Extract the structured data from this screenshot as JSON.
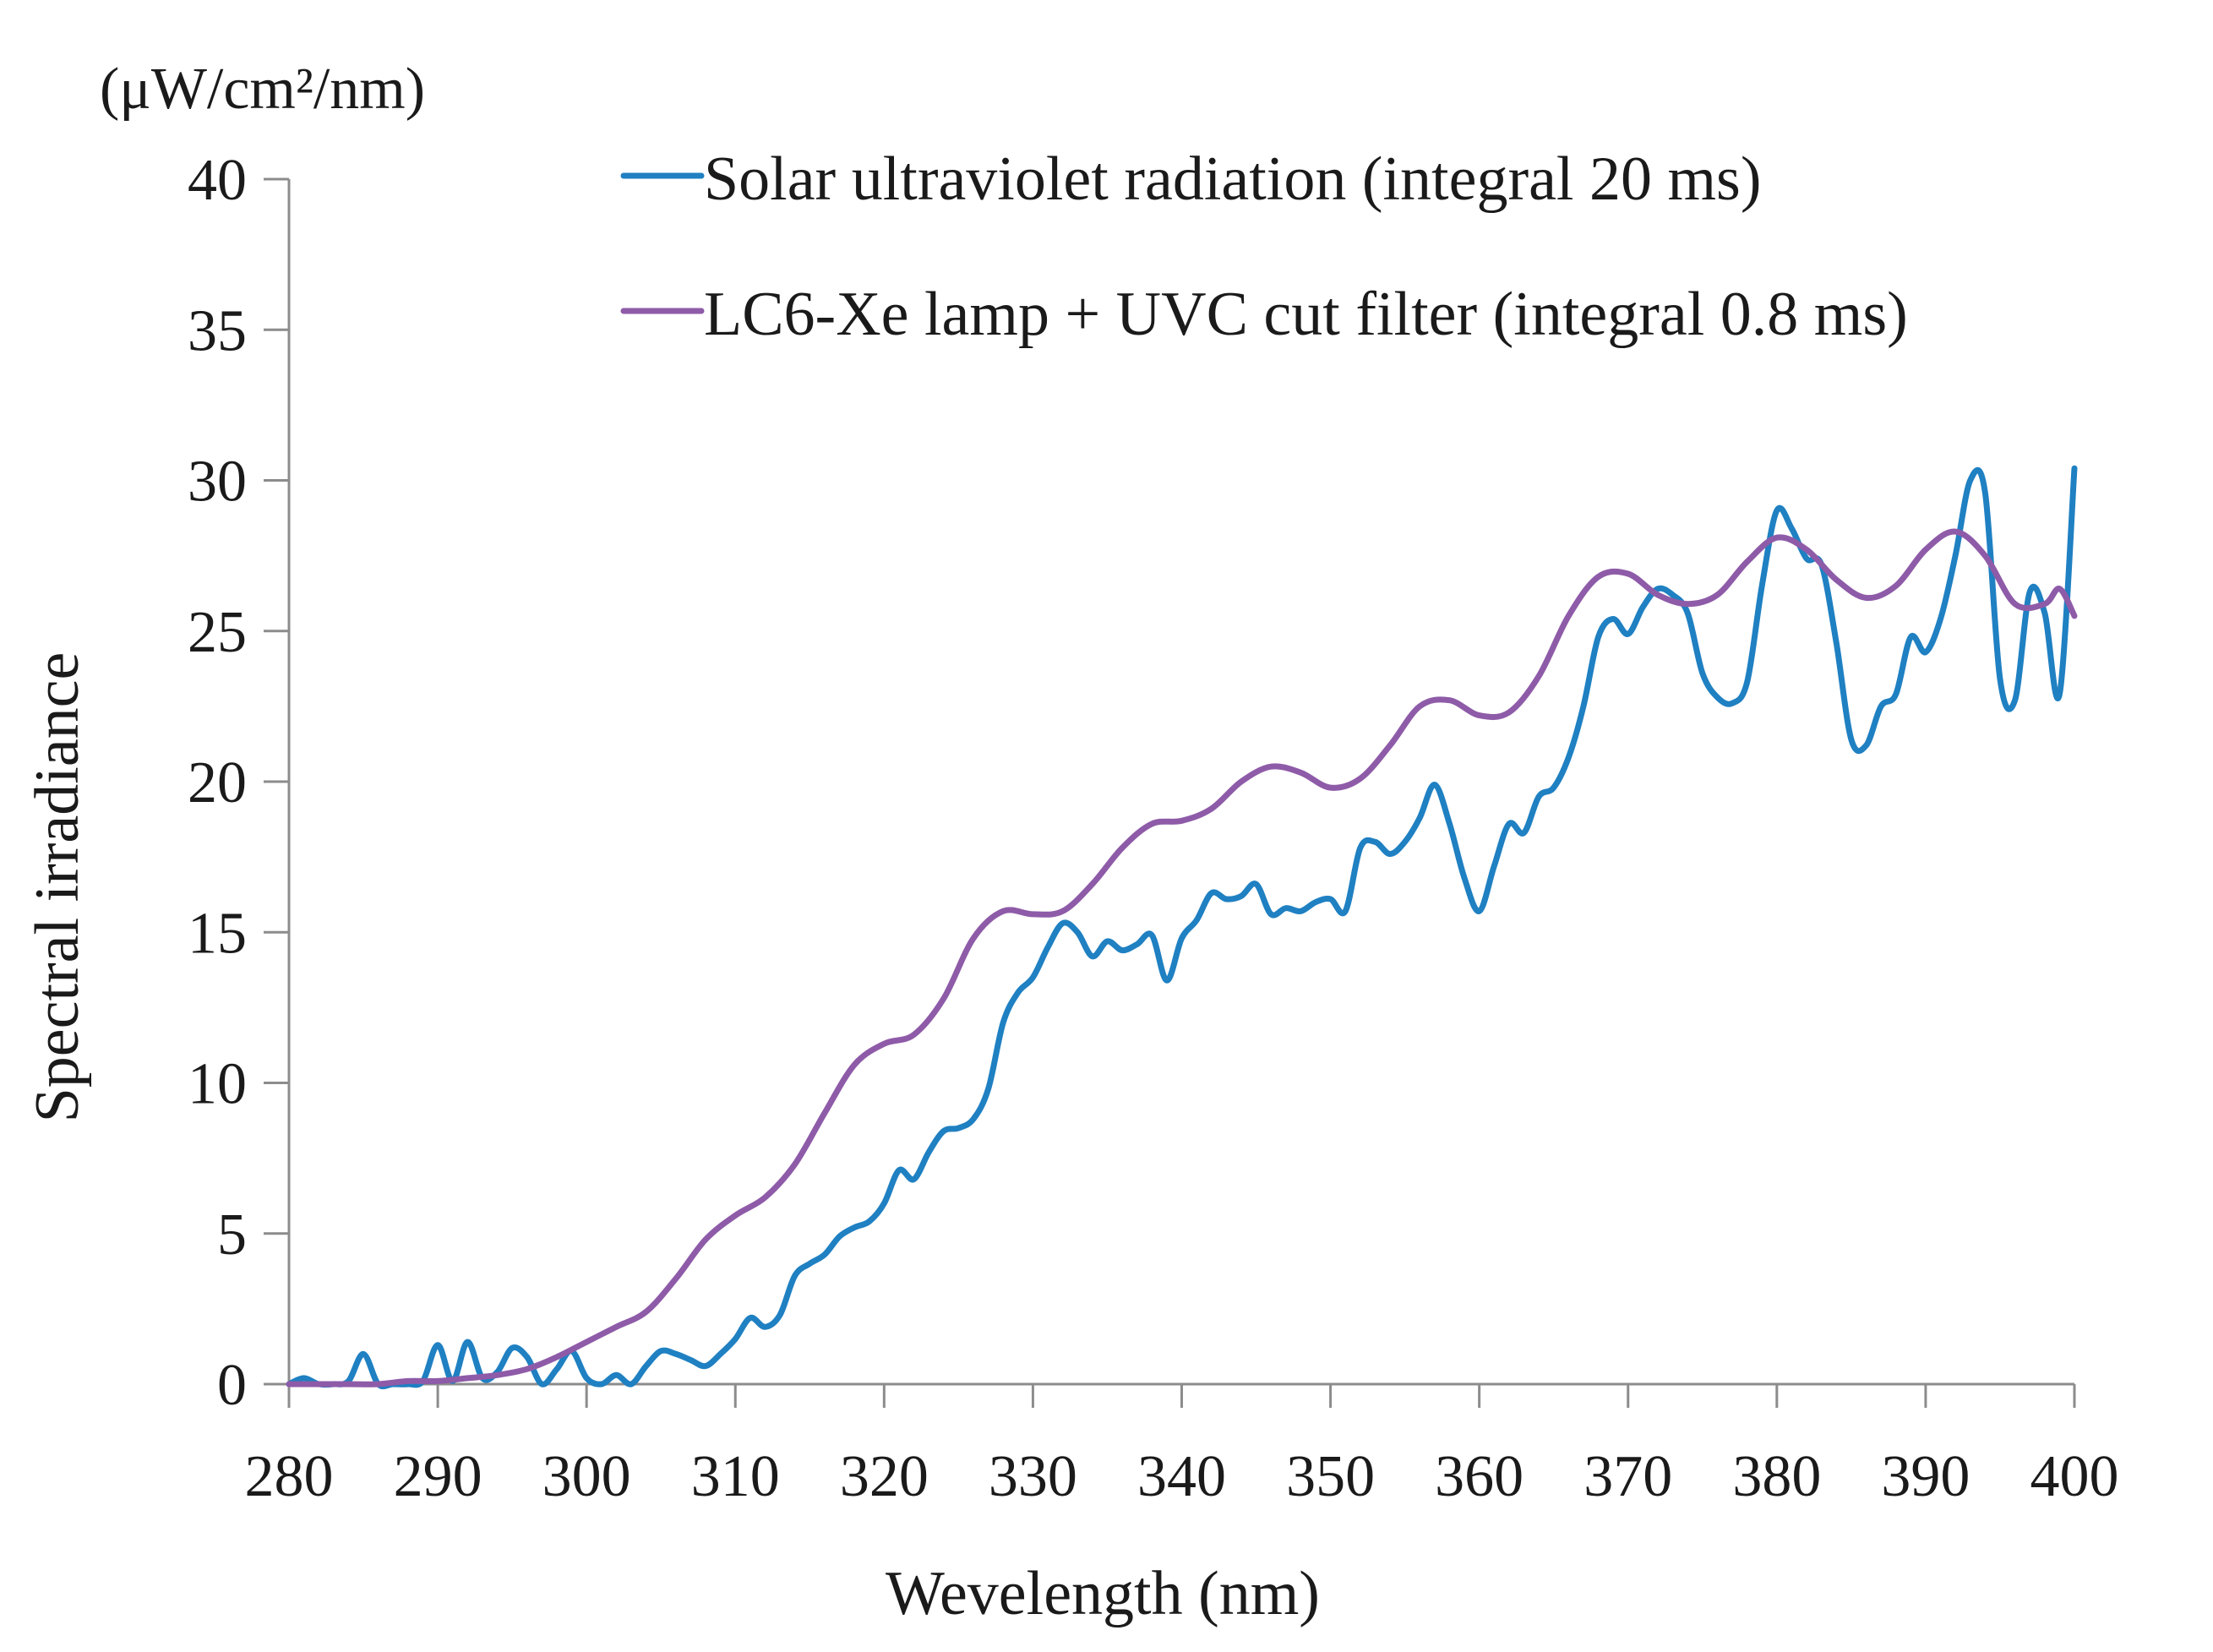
{
  "chart_data": {
    "type": "line",
    "units_label": "(μW/cm²/nm)",
    "xlabel": "Wevelength (nm)",
    "ylabel": "Spectral  irradiance",
    "xlim": [
      280,
      400
    ],
    "ylim": [
      0,
      40
    ],
    "xticks": [
      280,
      290,
      300,
      310,
      320,
      330,
      340,
      350,
      360,
      370,
      380,
      390,
      400
    ],
    "yticks": [
      0,
      5,
      10,
      15,
      20,
      25,
      30,
      35,
      40
    ],
    "grid": false,
    "legend_position": "top-right",
    "series": [
      {
        "name": "Solar ultraviolet radiation (integral 20 ms)",
        "color": "#1f80c2",
        "points": [
          [
            280,
            0
          ],
          [
            281,
            0.2
          ],
          [
            282,
            0
          ],
          [
            283,
            0
          ],
          [
            284,
            0.1
          ],
          [
            285,
            1.0
          ],
          [
            286,
            0
          ],
          [
            287,
            0
          ],
          [
            288,
            0
          ],
          [
            289,
            0.1
          ],
          [
            290,
            1.3
          ],
          [
            291,
            0.1
          ],
          [
            292,
            1.4
          ],
          [
            293,
            0.2
          ],
          [
            294,
            0.4
          ],
          [
            295,
            1.2
          ],
          [
            296,
            0.9
          ],
          [
            297,
            0
          ],
          [
            298,
            0.5
          ],
          [
            299,
            1.1
          ],
          [
            300,
            0.2
          ],
          [
            301,
            0
          ],
          [
            302,
            0.3
          ],
          [
            303,
            0
          ],
          [
            304,
            0.6
          ],
          [
            305,
            1.1
          ],
          [
            306,
            1.0
          ],
          [
            307,
            0.8
          ],
          [
            308,
            0.6
          ],
          [
            309,
            1.0
          ],
          [
            310,
            1.5
          ],
          [
            311,
            2.2
          ],
          [
            312,
            1.9
          ],
          [
            313,
            2.3
          ],
          [
            314,
            3.6
          ],
          [
            315,
            4.0
          ],
          [
            316,
            4.3
          ],
          [
            317,
            4.9
          ],
          [
            318,
            5.2
          ],
          [
            319,
            5.4
          ],
          [
            320,
            6.0
          ],
          [
            321,
            7.1
          ],
          [
            322,
            6.8
          ],
          [
            323,
            7.7
          ],
          [
            324,
            8.4
          ],
          [
            325,
            8.5
          ],
          [
            326,
            8.8
          ],
          [
            327,
            9.8
          ],
          [
            328,
            12.0
          ],
          [
            329,
            13.0
          ],
          [
            330,
            13.5
          ],
          [
            331,
            14.5
          ],
          [
            332,
            15.3
          ],
          [
            333,
            15.0
          ],
          [
            334,
            14.2
          ],
          [
            335,
            14.7
          ],
          [
            336,
            14.4
          ],
          [
            337,
            14.6
          ],
          [
            338,
            14.9
          ],
          [
            339,
            13.4
          ],
          [
            340,
            14.8
          ],
          [
            341,
            15.4
          ],
          [
            342,
            16.3
          ],
          [
            343,
            16.1
          ],
          [
            344,
            16.2
          ],
          [
            345,
            16.6
          ],
          [
            346,
            15.6
          ],
          [
            347,
            15.8
          ],
          [
            348,
            15.7
          ],
          [
            349,
            16.0
          ],
          [
            350,
            16.1
          ],
          [
            351,
            15.7
          ],
          [
            352,
            17.8
          ],
          [
            353,
            18.0
          ],
          [
            354,
            17.6
          ],
          [
            355,
            18.0
          ],
          [
            356,
            18.8
          ],
          [
            357,
            19.9
          ],
          [
            358,
            18.6
          ],
          [
            359,
            16.8
          ],
          [
            360,
            15.7
          ],
          [
            361,
            17.2
          ],
          [
            362,
            18.6
          ],
          [
            363,
            18.3
          ],
          [
            364,
            19.5
          ],
          [
            365,
            19.8
          ],
          [
            366,
            20.8
          ],
          [
            367,
            22.5
          ],
          [
            368,
            24.8
          ],
          [
            369,
            25.4
          ],
          [
            370,
            24.9
          ],
          [
            371,
            25.8
          ],
          [
            372,
            26.4
          ],
          [
            373,
            26.2
          ],
          [
            374,
            25.6
          ],
          [
            375,
            23.6
          ],
          [
            376,
            22.8
          ],
          [
            377,
            22.6
          ],
          [
            378,
            23.3
          ],
          [
            379,
            26.5
          ],
          [
            380,
            29.0
          ],
          [
            381,
            28.4
          ],
          [
            382,
            27.4
          ],
          [
            383,
            27.2
          ],
          [
            384,
            24.6
          ],
          [
            385,
            21.4
          ],
          [
            386,
            21.2
          ],
          [
            387,
            22.5
          ],
          [
            388,
            22.9
          ],
          [
            389,
            24.8
          ],
          [
            390,
            24.3
          ],
          [
            391,
            25.4
          ],
          [
            392,
            27.5
          ],
          [
            393,
            30.0
          ],
          [
            394,
            29.6
          ],
          [
            395,
            23.4
          ],
          [
            396,
            22.7
          ],
          [
            397,
            26.3
          ],
          [
            398,
            25.6
          ],
          [
            399,
            22.9
          ],
          [
            400,
            30.4
          ]
        ]
      },
      {
        "name": "LC6-Xe lamp + UVC cut filter (integral 0.8 ms)",
        "color": "#8e5ba8",
        "points": [
          [
            280,
            0
          ],
          [
            282,
            0
          ],
          [
            284,
            0
          ],
          [
            286,
            0
          ],
          [
            288,
            0.1
          ],
          [
            290,
            0.1
          ],
          [
            292,
            0.2
          ],
          [
            294,
            0.3
          ],
          [
            296,
            0.5
          ],
          [
            298,
            0.9
          ],
          [
            300,
            1.4
          ],
          [
            302,
            1.9
          ],
          [
            304,
            2.4
          ],
          [
            306,
            3.5
          ],
          [
            308,
            4.8
          ],
          [
            310,
            5.6
          ],
          [
            312,
            6.2
          ],
          [
            314,
            7.3
          ],
          [
            316,
            9.0
          ],
          [
            318,
            10.6
          ],
          [
            320,
            11.3
          ],
          [
            322,
            11.6
          ],
          [
            324,
            12.8
          ],
          [
            326,
            14.8
          ],
          [
            328,
            15.7
          ],
          [
            330,
            15.6
          ],
          [
            332,
            15.7
          ],
          [
            334,
            16.6
          ],
          [
            336,
            17.8
          ],
          [
            338,
            18.6
          ],
          [
            340,
            18.7
          ],
          [
            342,
            19.1
          ],
          [
            344,
            20.0
          ],
          [
            346,
            20.5
          ],
          [
            348,
            20.3
          ],
          [
            350,
            19.8
          ],
          [
            352,
            20.1
          ],
          [
            354,
            21.2
          ],
          [
            356,
            22.5
          ],
          [
            358,
            22.7
          ],
          [
            360,
            22.2
          ],
          [
            362,
            22.3
          ],
          [
            364,
            23.5
          ],
          [
            366,
            25.5
          ],
          [
            368,
            26.8
          ],
          [
            370,
            26.9
          ],
          [
            372,
            26.2
          ],
          [
            374,
            25.9
          ],
          [
            376,
            26.2
          ],
          [
            378,
            27.3
          ],
          [
            380,
            28.1
          ],
          [
            382,
            27.7
          ],
          [
            384,
            26.7
          ],
          [
            386,
            26.1
          ],
          [
            388,
            26.5
          ],
          [
            390,
            27.7
          ],
          [
            392,
            28.3
          ],
          [
            394,
            27.5
          ],
          [
            396,
            25.9
          ],
          [
            398,
            25.9
          ],
          [
            399,
            26.4
          ],
          [
            400,
            25.5
          ]
        ]
      }
    ]
  }
}
